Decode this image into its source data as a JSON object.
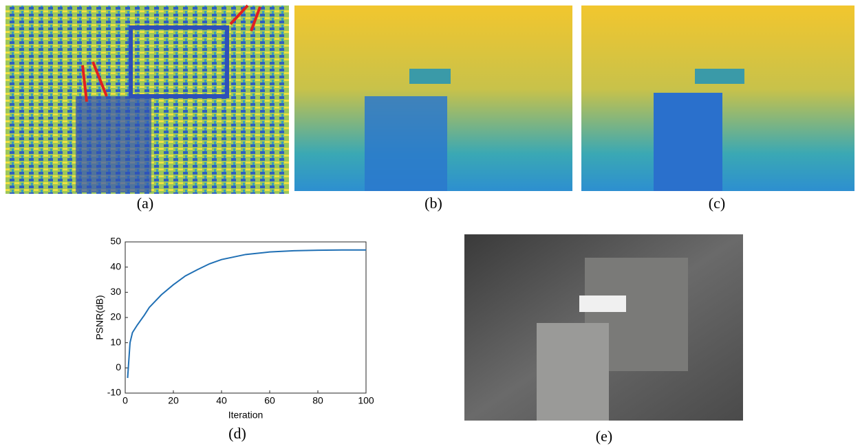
{
  "captions": {
    "a": "(a)",
    "b": "(b)",
    "c": "(c)",
    "d": "(d)",
    "e": "(e)"
  },
  "chart_data": {
    "type": "line",
    "xlabel": "Iteration",
    "ylabel": "PSNR(dB)",
    "x": [
      1,
      2,
      3,
      5,
      8,
      10,
      15,
      20,
      25,
      30,
      35,
      40,
      50,
      60,
      70,
      80,
      90,
      100
    ],
    "values": [
      -4,
      10,
      14,
      17,
      21,
      24,
      29,
      33,
      36.5,
      39,
      41.3,
      43,
      45,
      46,
      46.5,
      46.7,
      46.8,
      46.8
    ],
    "color": "#1f6fb4",
    "xlim": [
      0,
      100
    ],
    "xticks": [
      0,
      20,
      40,
      60,
      80,
      100
    ],
    "ylim": [
      -10,
      50
    ],
    "yticks": [
      -10,
      0,
      10,
      20,
      30,
      40,
      50
    ]
  }
}
